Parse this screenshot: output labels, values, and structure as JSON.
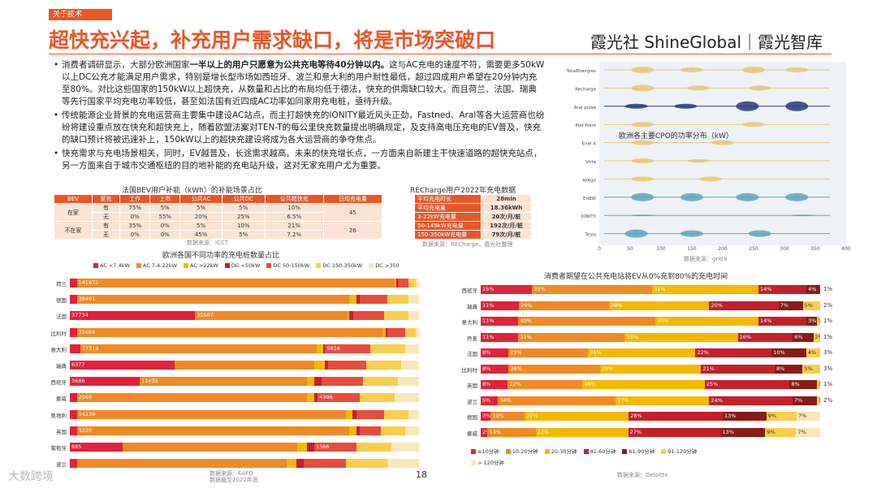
{
  "header": {
    "tag": "关于技术",
    "title": "超快充兴起，补充用户需求缺口，将是市场突破口",
    "brand": "霞光社 ShineGlobal｜霞光智库"
  },
  "bullets": [
    {
      "pre": "消费者调研显示，大部分欧洲国家",
      "bold": "一半以上的用户只愿意为公共充电等待40分钟以内。",
      "post": "这与AC充电的速度不符，需要更多50kW以上DC公充才能满足用户需求，特别是增长型市场如西班牙、波兰和意大利的用户耐性最低，超过四成用户希望在20分钟内充至80%。对比这些国家的150kW以上超快充，从数量和占比的布局均低于德法，快充的供需缺口较大。而且荷兰、法国、瑞典等先行国家平均充电功率较低，甚至如法国有近四成AC功率如同家用充电桩，亟待升级。"
    },
    {
      "pre": "传统能源企业背景的充电运营商主要集中建设AC站点，而主打超快充的IONITY最近风头正劲，Fastned、Aral等各大运营商也纷纷将建设重点放在快充和超快充上，随着欧盟法案对TEN-T的每公里快充数量提出明确规定，及支持高电压充电的EV普及，快充的缺口预计将被迅速补上，150kW以上的超快充建设将成为各大运营商的争夺焦点。",
      "bold": "",
      "post": ""
    },
    {
      "pre": "快充需求与充电场景相关，同时，EV越普及，长途需求越高。未来的快充增长点，一方面来自新建主干快速道路的超快充站点，另一方面来自于城市交通枢纽的目的地补能的充电站升级，这对无家充用户尤为重要。",
      "bold": "",
      "post": ""
    }
  ],
  "france_table": {
    "title": "法国BEV用户补能（kWh）的补能场景占比",
    "headers": [
      "BEV",
      "家充",
      "工作",
      "上市",
      "公共AC",
      "公共DC",
      "公共超快充",
      "日均充电量"
    ],
    "rows": [
      {
        "group": "在家",
        "sub": "有",
        "vals": [
          "75%",
          "5%",
          "5%",
          "5%",
          "10%"
        ],
        "daily": "45"
      },
      {
        "group": "",
        "sub": "无",
        "vals": [
          "0%",
          "55%",
          "20%",
          "25%",
          "6.5%"
        ],
        "daily": ""
      },
      {
        "group": "不在家",
        "sub": "有",
        "vals": [
          "35%",
          "0%",
          "5%",
          "10%",
          "21%"
        ],
        "daily": "26"
      },
      {
        "group": "",
        "sub": "无",
        "vals": [
          "0%",
          "0%",
          "45%",
          "5%",
          "7.2%"
        ],
        "daily": ""
      }
    ],
    "source": "数据来源：ICCT"
  },
  "recharge_table": {
    "title": "RECharge用户2022年充电数据",
    "rows": [
      {
        "k": "平均充电时长",
        "v": "28min"
      },
      {
        "k": "平均充电量",
        "v": "18.36kWh"
      },
      {
        "k": "3-22kW充电量",
        "v": "20次/月/桩"
      },
      {
        "k": "50-149kW充电量",
        "v": "192次/月/桩"
      },
      {
        "k": "150-350kW充电量",
        "v": "79次/月/桩"
      }
    ],
    "source": "数据来源：RECharge，霞光社整理"
  },
  "violin": {
    "title": "欧洲各主要CPO的功率分布（kW）",
    "operators": [
      "TotalEnergies",
      "Recharge",
      "Aral pulse",
      "Pod Point",
      "Enel X",
      "Virta",
      "Allego",
      "EnBW",
      "IONITY",
      "Tesla"
    ],
    "xticks": [
      "0",
      "50",
      "100",
      "150",
      "200",
      "250",
      "300",
      "350",
      "400"
    ],
    "source": "数据来源：gridX"
  },
  "left_chart": {
    "title": "欧洲各国不同功率的充电桩数量占比",
    "legend": [
      "AC <7.4kW",
      "AC 7.4-22kW",
      "AC >22kW",
      "DC <50kW",
      "DC 50-150kW",
      "DC 150-350kW",
      "DC >350"
    ],
    "colors": [
      "#e0223b",
      "#f08a24",
      "#f5b800",
      "#c41f2b",
      "#e74c3c",
      "#f7cf4d",
      "#f9e7b8"
    ],
    "rows": [
      {
        "label": "荷兰",
        "vals": [
          2,
          92,
          0,
          0,
          3,
          2,
          1
        ],
        "texts": [
          "",
          "141872",
          "",
          "",
          "",
          "",
          ""
        ]
      },
      {
        "label": "德国",
        "vals": [
          2,
          78,
          2,
          1,
          8,
          6,
          3
        ],
        "texts": [
          "",
          "38491",
          "",
          "",
          "",
          "",
          ""
        ]
      },
      {
        "label": "法国",
        "vals": [
          36,
          44,
          0,
          1,
          9,
          7,
          3
        ],
        "texts": [
          "37734",
          "35507",
          "",
          "",
          "",
          "",
          ""
        ]
      },
      {
        "label": "比利时",
        "vals": [
          2,
          88,
          1,
          0,
          5,
          3,
          1
        ],
        "texts": [
          "",
          "35684",
          "",
          "",
          "",
          "",
          ""
        ]
      },
      {
        "label": "意大利",
        "vals": [
          3,
          68,
          2,
          0,
          13,
          10,
          4
        ],
        "texts": [
          "",
          "27319",
          "",
          "",
          "5816",
          "",
          ""
        ]
      },
      {
        "label": "瑞典",
        "vals": [
          30,
          40,
          3,
          1,
          11,
          10,
          5
        ],
        "texts": [
          "6377",
          "",
          "",
          "",
          "",
          "",
          ""
        ]
      },
      {
        "label": "西班牙",
        "vals": [
          20,
          48,
          2,
          2,
          12,
          10,
          6
        ],
        "texts": [
          "3686",
          "11435",
          "",
          "",
          "",
          "",
          ""
        ]
      },
      {
        "label": "挪威",
        "vals": [
          2,
          66,
          2,
          1,
          12,
          10,
          7
        ],
        "texts": [
          "",
          "2069",
          "",
          "",
          "4396",
          "",
          ""
        ]
      },
      {
        "label": "奥地利",
        "vals": [
          2,
          77,
          2,
          1,
          8,
          7,
          3
        ],
        "texts": [
          "",
          "14139",
          "",
          "",
          "",
          "",
          ""
        ]
      },
      {
        "label": "英国",
        "vals": [
          2,
          78,
          2,
          1,
          6,
          7,
          4
        ],
        "texts": [
          "",
          "9220",
          "",
          "",
          "",
          "",
          ""
        ]
      },
      {
        "label": "葡萄牙",
        "vals": [
          15,
          50,
          3,
          2,
          12,
          10,
          8
        ],
        "texts": [
          "685",
          "",
          "",
          "",
          "1366",
          "",
          ""
        ]
      },
      {
        "label": "波兰",
        "vals": [
          2,
          60,
          3,
          2,
          12,
          12,
          9
        ],
        "texts": [
          "",
          "",
          "",
          "",
          "",
          "",
          ""
        ]
      }
    ],
    "source": "数据来源：EAFO\n数据截至2022年底"
  },
  "right_chart": {
    "title": "消费者期望在公共充电站将EV从0%充到80%的充电时间",
    "legend": [
      "≤10分钟",
      "10-20分钟",
      "20-30分钟",
      "41-60分钟",
      "61-90分钟",
      "91-120分钟",
      "> 120分钟"
    ],
    "colors": [
      "#e0223b",
      "#f08a24",
      "#f5b800",
      "#c41f2b",
      "#8b1a1a",
      "#f7cf4d",
      "#f9e7b8"
    ],
    "rows": [
      {
        "label": "西班牙",
        "vals": [
          15,
          35,
          31,
          14,
          4,
          0,
          0
        ],
        "out": "1%"
      },
      {
        "label": "瑞典",
        "vals": [
          11,
          26,
          29,
          20,
          7,
          5,
          0
        ],
        "out": "2%"
      },
      {
        "label": "意大利",
        "vals": [
          11,
          40,
          30,
          14,
          3,
          1,
          0
        ],
        "out": "1%"
      },
      {
        "label": "丹麦",
        "vals": [
          11,
          31,
          33,
          16,
          6,
          2,
          0
        ],
        "out": "1%"
      },
      {
        "label": "法国",
        "vals": [
          8,
          23,
          31,
          22,
          10,
          4,
          0
        ],
        "out": "3%"
      },
      {
        "label": "比利时",
        "vals": [
          8,
          26,
          29,
          21,
          8,
          5,
          0
        ],
        "out": "3%"
      },
      {
        "label": "英国",
        "vals": [
          8,
          22,
          36,
          25,
          8,
          1,
          0
        ],
        "out": "1%"
      },
      {
        "label": "波兰",
        "vals": [
          5,
          34,
          27,
          24,
          7,
          1,
          0
        ],
        "out": "2%"
      },
      {
        "label": "德国",
        "vals": [
          3,
          10,
          31,
          28,
          13,
          9,
          7
        ],
        "out": ""
      },
      {
        "label": "挪威",
        "vals": [
          2,
          14,
          27,
          27,
          13,
          9,
          7
        ],
        "out": ""
      }
    ],
    "source": "数据来源：Deloitte"
  },
  "footer": {
    "page": "18",
    "watermark": "大数跨境"
  }
}
